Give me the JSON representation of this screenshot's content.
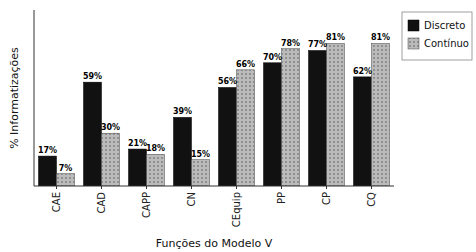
{
  "chart_data": {
    "type": "bar",
    "xlabel": "Funções do Modelo V",
    "ylabel": "% Informatizações",
    "categories": [
      "CAE",
      "CAD",
      "CAPP",
      "CN",
      "CEquip",
      "PP",
      "CP",
      "CQ"
    ],
    "series": [
      {
        "name": "Discreto",
        "color": "#111111",
        "values": [
          17,
          59,
          21,
          39,
          56,
          70,
          77,
          62
        ],
        "value_labels": [
          "17%",
          "59%",
          "21%",
          "39%",
          "56%",
          "70%",
          "77%",
          "62%"
        ]
      },
      {
        "name": "Contínuo",
        "color": "#bbbbbb",
        "values": [
          7,
          30,
          18,
          15,
          66,
          78,
          81,
          81
        ],
        "value_labels": [
          "7%",
          "30%",
          "18%",
          "15%",
          "66%",
          "78%",
          "81%",
          "81%"
        ]
      }
    ],
    "ylim": [
      0,
      100
    ],
    "tick_labels": "x",
    "data_labels": true,
    "grid": false,
    "legend": "upper right"
  }
}
